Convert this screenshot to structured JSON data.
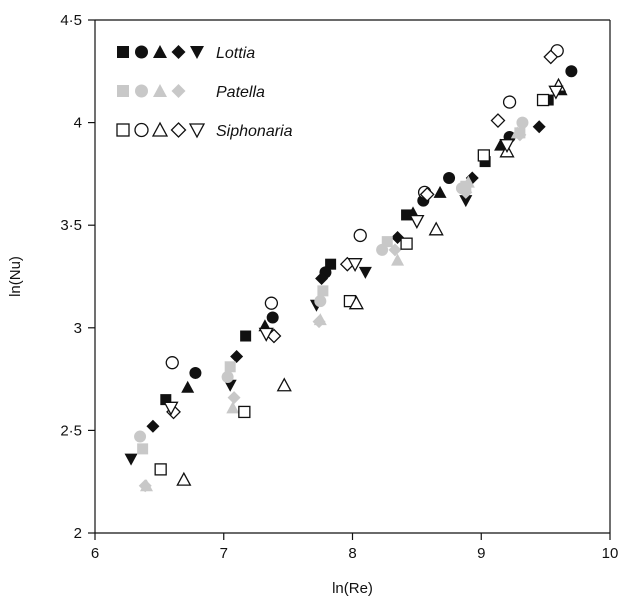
{
  "chart_data": {
    "type": "scatter",
    "xlabel": "ln(Re)",
    "ylabel": "ln(Nu)",
    "xlim": [
      6,
      10
    ],
    "ylim": [
      2,
      4.5
    ],
    "x_ticks": [
      "6",
      "7",
      "8",
      "9",
      "10"
    ],
    "y_ticks": [
      "2",
      "2·5",
      "3",
      "3·5",
      "4",
      "4·5"
    ],
    "grid": false,
    "legend_position": "top-left",
    "marker_shapes": [
      "square",
      "circle",
      "triangle",
      "diamond",
      "triangle-down"
    ],
    "series": [
      {
        "name": "Lottia",
        "color": "#111111",
        "fill": "filled",
        "groups": [
          {
            "marker": "square",
            "points": [
              [
                6.55,
                2.65
              ],
              [
                7.17,
                2.96
              ],
              [
                7.83,
                3.31
              ],
              [
                8.42,
                3.55
              ],
              [
                9.03,
                3.81
              ],
              [
                9.52,
                4.11
              ]
            ]
          },
          {
            "marker": "circle",
            "points": [
              [
                6.78,
                2.78
              ],
              [
                7.38,
                3.05
              ],
              [
                7.79,
                3.27
              ],
              [
                8.55,
                3.62
              ],
              [
                8.75,
                3.73
              ],
              [
                9.22,
                3.93
              ],
              [
                9.7,
                4.25
              ]
            ]
          },
          {
            "marker": "triangle",
            "points": [
              [
                6.72,
                2.71
              ],
              [
                7.32,
                3.01
              ],
              [
                8.47,
                3.56
              ],
              [
                8.68,
                3.66
              ],
              [
                9.15,
                3.89
              ],
              [
                9.62,
                4.16
              ]
            ]
          },
          {
            "marker": "diamond",
            "points": [
              [
                6.45,
                2.52
              ],
              [
                7.1,
                2.86
              ],
              [
                7.76,
                3.24
              ],
              [
                8.35,
                3.44
              ],
              [
                8.93,
                3.73
              ],
              [
                9.45,
                3.98
              ]
            ]
          },
          {
            "marker": "triangle-down",
            "points": [
              [
                6.28,
                2.36
              ],
              [
                7.05,
                2.72
              ],
              [
                7.72,
                3.11
              ],
              [
                8.1,
                3.27
              ],
              [
                8.88,
                3.62
              ]
            ]
          }
        ]
      },
      {
        "name": "Patella",
        "color": "#c8c8c8",
        "fill": "filled",
        "groups": [
          {
            "marker": "square",
            "points": [
              [
                6.37,
                2.41
              ],
              [
                7.05,
                2.81
              ],
              [
                7.77,
                3.18
              ],
              [
                8.27,
                3.42
              ],
              [
                8.88,
                3.69
              ],
              [
                9.3,
                3.95
              ]
            ]
          },
          {
            "marker": "circle",
            "points": [
              [
                6.35,
                2.47
              ],
              [
                7.03,
                2.76
              ],
              [
                7.75,
                3.13
              ],
              [
                8.23,
                3.38
              ],
              [
                8.85,
                3.68
              ],
              [
                9.32,
                4.0
              ]
            ]
          },
          {
            "marker": "triangle",
            "points": [
              [
                6.4,
                2.23
              ],
              [
                7.07,
                2.61
              ],
              [
                7.75,
                3.04
              ],
              [
                8.35,
                3.33
              ],
              [
                8.9,
                3.71
              ],
              [
                9.28,
                3.95
              ]
            ]
          },
          {
            "marker": "diamond",
            "points": [
              [
                6.39,
                2.23
              ],
              [
                7.08,
                2.66
              ],
              [
                7.74,
                3.03
              ],
              [
                8.33,
                3.38
              ],
              [
                8.88,
                3.66
              ],
              [
                9.3,
                3.94
              ]
            ]
          }
        ]
      },
      {
        "name": "Siphonaria",
        "color": "#111111",
        "fill": "hollow",
        "groups": [
          {
            "marker": "square",
            "points": [
              [
                6.51,
                2.31
              ],
              [
                7.16,
                2.59
              ],
              [
                7.98,
                3.13
              ],
              [
                8.42,
                3.41
              ],
              [
                9.02,
                3.84
              ],
              [
                9.48,
                4.11
              ]
            ]
          },
          {
            "marker": "circle",
            "points": [
              [
                6.6,
                2.83
              ],
              [
                7.37,
                3.12
              ],
              [
                8.06,
                3.45
              ],
              [
                8.56,
                3.66
              ],
              [
                9.22,
                4.1
              ],
              [
                9.59,
                4.35
              ]
            ]
          },
          {
            "marker": "triangle",
            "points": [
              [
                6.69,
                2.26
              ],
              [
                7.47,
                2.72
              ],
              [
                8.03,
                3.12
              ],
              [
                8.65,
                3.48
              ],
              [
                9.2,
                3.86
              ],
              [
                9.6,
                4.18
              ]
            ]
          },
          {
            "marker": "diamond",
            "points": [
              [
                6.61,
                2.59
              ],
              [
                7.39,
                2.96
              ],
              [
                7.96,
                3.31
              ],
              [
                8.58,
                3.65
              ],
              [
                9.13,
                4.01
              ],
              [
                9.54,
                4.32
              ]
            ]
          },
          {
            "marker": "triangle-down",
            "points": [
              [
                6.59,
                2.61
              ],
              [
                7.33,
                2.97
              ],
              [
                8.02,
                3.31
              ],
              [
                8.5,
                3.52
              ],
              [
                9.2,
                3.89
              ],
              [
                9.58,
                4.15
              ]
            ]
          }
        ]
      }
    ]
  }
}
